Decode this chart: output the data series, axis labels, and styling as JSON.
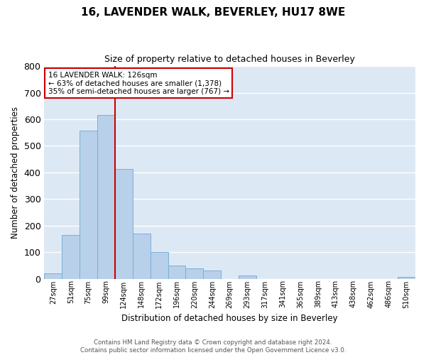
{
  "title": "16, LAVENDER WALK, BEVERLEY, HU17 8WE",
  "subtitle": "Size of property relative to detached houses in Beverley",
  "xlabel": "Distribution of detached houses by size in Beverley",
  "ylabel": "Number of detached properties",
  "bar_color": "#b8d0ea",
  "bar_edge_color": "#7aafd4",
  "background_color": "#dde8f5",
  "grid_color": "white",
  "ylim": [
    0,
    800
  ],
  "yticks": [
    0,
    100,
    200,
    300,
    400,
    500,
    600,
    700,
    800
  ],
  "bin_labels": [
    "27sqm",
    "51sqm",
    "75sqm",
    "99sqm",
    "124sqm",
    "148sqm",
    "172sqm",
    "196sqm",
    "220sqm",
    "244sqm",
    "269sqm",
    "293sqm",
    "317sqm",
    "341sqm",
    "365sqm",
    "389sqm",
    "413sqm",
    "438sqm",
    "462sqm",
    "486sqm",
    "510sqm"
  ],
  "bar_values": [
    20,
    165,
    557,
    615,
    413,
    170,
    100,
    50,
    40,
    33,
    0,
    13,
    0,
    0,
    0,
    0,
    0,
    0,
    0,
    0,
    8
  ],
  "vline_x": 4,
  "annotation_title": "16 LAVENDER WALK: 126sqm",
  "annotation_line1": "← 63% of detached houses are smaller (1,378)",
  "annotation_line2": "35% of semi-detached houses are larger (767) →",
  "vline_color": "#cc0000",
  "annotation_box_edge": "#cc0000",
  "footer_line1": "Contains HM Land Registry data © Crown copyright and database right 2024.",
  "footer_line2": "Contains public sector information licensed under the Open Government Licence v3.0."
}
